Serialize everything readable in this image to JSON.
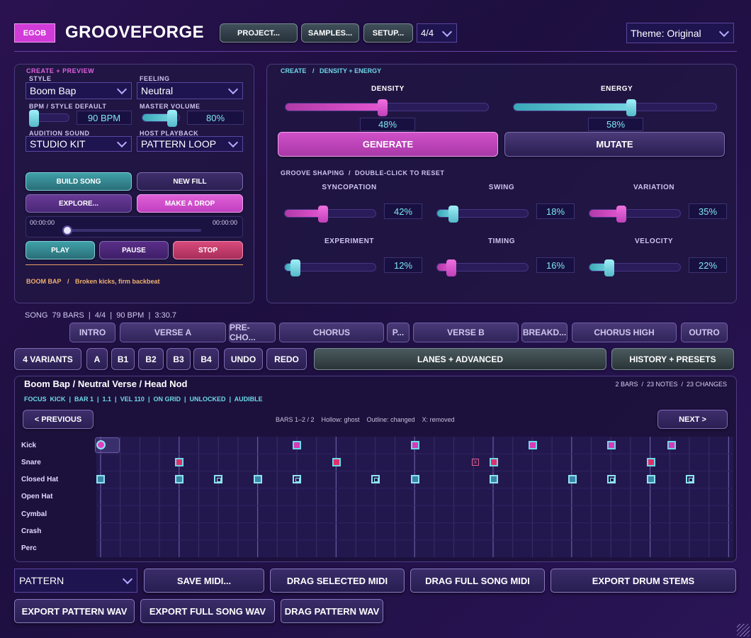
{
  "header": {
    "logo": "EGOB",
    "title": "GROOVEFORGE",
    "project_btn": "PROJECT...",
    "samples_btn": "SAMPLES...",
    "setup_btn": "SETUP...",
    "time_sig": "4/4",
    "theme": "Theme: Original"
  },
  "left": {
    "section": "CREATE + PREVIEW",
    "style_label": "STYLE",
    "style_value": "Boom Bap",
    "feeling_label": "FEELING",
    "feeling_value": "Neutral",
    "bpm_label": "BPM / STYLE DEFAULT",
    "bpm_value": "90 BPM",
    "bpm_level": 0.1,
    "master_label": "MASTER VOLUME",
    "master_value": "80%",
    "master_level": 0.8,
    "audition_label": "AUDITION SOUND",
    "audition_value": "STUDIO KIT",
    "host_label": "HOST PLAYBACK",
    "host_value": "PATTERN LOOP",
    "build_song": "BUILD SONG",
    "new_fill": "NEW FILL",
    "explore": "EXPLORE...",
    "make_drop": "MAKE A DROP",
    "time_start": "00:00:00",
    "time_end": "00:00:00",
    "play": "PLAY",
    "pause": "PAUSE",
    "stop": "STOP",
    "style_tag": "BOOM BAP",
    "style_sep": "/",
    "style_desc": "Broken kicks, firm backbeat"
  },
  "right": {
    "crumb_a": "CREATE",
    "crumb_sep": "/",
    "crumb_b": "DENSITY + ENERGY",
    "density_label": "DENSITY",
    "density_value": "48%",
    "density_level": 0.48,
    "energy_label": "ENERGY",
    "energy_value": "58%",
    "energy_level": 0.58,
    "generate": "GENERATE",
    "mutate": "MUTATE",
    "shaping": "GROOVE SHAPING  /  DOUBLE-CLICK TO RESET",
    "knobs": [
      {
        "label": "SYNCOPATION",
        "value": "42%",
        "level": 0.42,
        "color": "p"
      },
      {
        "label": "SWING",
        "value": "18%",
        "level": 0.18,
        "color": "c"
      },
      {
        "label": "VARIATION",
        "value": "35%",
        "level": 0.35,
        "color": "p"
      },
      {
        "label": "EXPERIMENT",
        "value": "12%",
        "level": 0.12,
        "color": "c"
      },
      {
        "label": "TIMING",
        "value": "16%",
        "level": 0.16,
        "color": "p"
      },
      {
        "label": "VELOCITY",
        "value": "22%",
        "level": 0.22,
        "color": "c"
      }
    ]
  },
  "song": {
    "info": "SONG  79 BARS  |  4/4  |  90 BPM  |  3:30.7",
    "sections": [
      "INTRO",
      "VERSE A",
      "PRE-CHO...",
      "CHORUS",
      "P...",
      "VERSE B",
      "BREAKD...",
      "CHORUS HIGH",
      "OUTRO"
    ]
  },
  "toolbar": {
    "variants": "4 VARIANTS",
    "a": "A",
    "b1": "B1",
    "b2": "B2",
    "b3": "B3",
    "b4": "B4",
    "undo": "UNDO",
    "redo": "REDO",
    "lanes": "LANES + ADVANCED",
    "history": "HISTORY + PRESETS"
  },
  "editor": {
    "title": "Boom Bap / Neutral Verse / Head Nod",
    "stats": "2 BARS  /  23 NOTES  /  23 CHANGES",
    "focus": "FOCUS  KICK  |  BAR 1  |  1.1  |  VEL 110  |  ON GRID  |  UNLOCKED  |  AUDIBLE",
    "prev": "< PREVIOUS",
    "next": "NEXT >",
    "legend": "BARS 1–2 / 2    Hollow: ghost    Outline: changed    X: removed",
    "lanes": [
      "Kick",
      "Snare",
      "Closed Hat",
      "Open Hat",
      "Cymbal",
      "Crash",
      "Perc"
    ]
  },
  "export": {
    "mode": "PATTERN",
    "save_midi": "SAVE MIDI...",
    "drag_selected": "DRAG SELECTED MIDI",
    "drag_full": "DRAG FULL SONG MIDI",
    "export_stems": "EXPORT DRUM STEMS",
    "export_pattern_wav": "EXPORT PATTERN WAV",
    "export_song_wav": "EXPORT FULL SONG WAV",
    "drag_pattern_wav": "DRAG PATTERN WAV"
  },
  "colors": {
    "accent_pink": "#e455d0",
    "accent_cyan": "#74d4e0",
    "logo_bg": "#d13bd8"
  }
}
